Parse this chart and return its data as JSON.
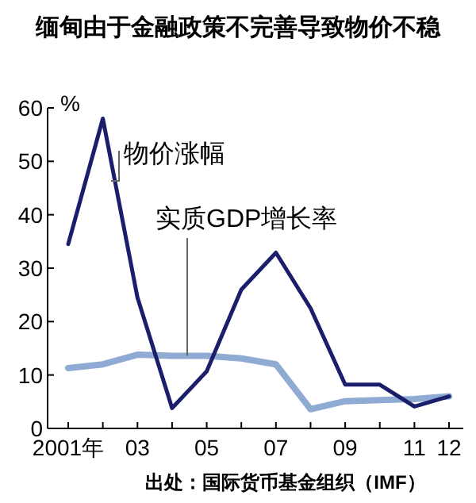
{
  "chart_data": {
    "type": "line",
    "title": "缅甸由于金融政策不完善导致物价不稳",
    "ylabel": "%",
    "categories": [
      "2001年",
      null,
      "03",
      null,
      "05",
      null,
      "07",
      null,
      "09",
      null,
      "11",
      "12"
    ],
    "series": [
      {
        "name": "物价涨幅",
        "color": "#1b1f6b",
        "values": [
          34.5,
          58,
          24.5,
          3.8,
          10.7,
          26,
          32.9,
          22.5,
          8.2,
          8.2,
          4.1,
          6
        ]
      },
      {
        "name": "实质GDP增长率",
        "color": "#8faad3",
        "values": [
          11.3,
          12,
          13.8,
          13.6,
          13.6,
          13.1,
          12,
          3.6,
          5.1,
          5.3,
          5.5,
          6
        ]
      }
    ],
    "ylim": [
      0,
      60
    ],
    "yticks": [
      0,
      10,
      20,
      30,
      40,
      50,
      60
    ],
    "grid": false,
    "marker": "none",
    "line_style": "solid",
    "annotations": [
      "出处：国际货币基金组织（IMF）"
    ]
  }
}
